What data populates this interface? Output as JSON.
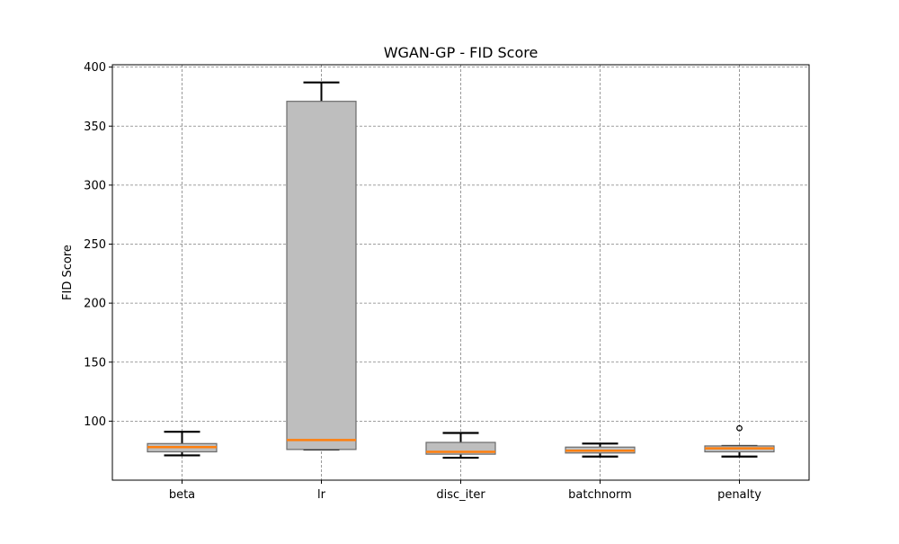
{
  "chart_data": {
    "type": "box",
    "title": "WGAN-GP - FID Score",
    "xlabel": "",
    "ylabel": "FID Score",
    "ylim": [
      50,
      402
    ],
    "yticks": [
      100,
      150,
      200,
      250,
      300,
      350,
      400
    ],
    "grid": true,
    "categories": [
      "beta",
      "lr",
      "disc_iter",
      "batchnorm",
      "penalty"
    ],
    "boxes": [
      {
        "category": "beta",
        "whisker_low": 71,
        "q1": 74,
        "median": 78,
        "q3": 81,
        "whisker_high": 91,
        "outliers": []
      },
      {
        "category": "lr",
        "whisker_low": 76,
        "q1": 76,
        "median": 84,
        "q3": 371,
        "whisker_high": 387,
        "outliers": []
      },
      {
        "category": "disc_iter",
        "whisker_low": 69,
        "q1": 72,
        "median": 74,
        "q3": 82,
        "whisker_high": 90,
        "outliers": []
      },
      {
        "category": "batchnorm",
        "whisker_low": 70,
        "q1": 73,
        "median": 75,
        "q3": 78,
        "whisker_high": 81,
        "outliers": []
      },
      {
        "category": "penalty",
        "whisker_low": 70,
        "q1": 74,
        "median": 77,
        "q3": 79,
        "whisker_high": 79,
        "outliers": [
          94
        ]
      }
    ],
    "colors": {
      "box_fill": "#bebebe",
      "box_edge": "#6b6b6b",
      "median": "#ff7f0e",
      "whisker": "#000000",
      "grid": "#808080"
    }
  }
}
